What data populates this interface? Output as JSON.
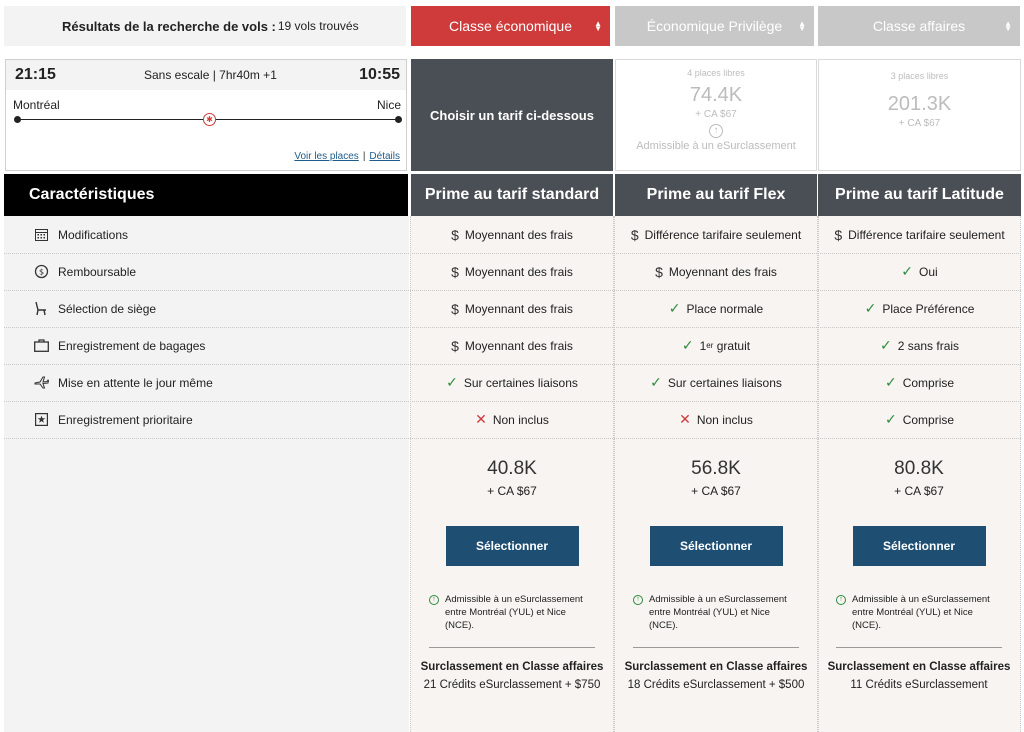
{
  "header": {
    "results_title": "Résultats de la recherche de vols :",
    "results_count": "19 vols trouvés",
    "tabs": [
      {
        "label": "Classe économique",
        "color": "#cf3a3a"
      },
      {
        "label": "Économique Privilège",
        "color": "#c8c8c8"
      },
      {
        "label": "Classe affaires",
        "color": "#c8c8c8"
      }
    ]
  },
  "flight": {
    "departure_time": "21:15",
    "arrival_time": "10:55",
    "duration": "Sans escale | 7hr40m +1",
    "origin": "Montréal",
    "destination": "Nice",
    "seats_link": "Voir les places",
    "details_link": "Détails",
    "link_separator": "|"
  },
  "choose_label": "Choisir un tarif ci-dessous",
  "cabin_prices": [
    {
      "seats": "4 places libres",
      "miles": "74.4K",
      "cash": "+ CA $67",
      "eligibility": "Admissible à un eSurclassement"
    },
    {
      "seats": "3 places libres",
      "miles": "201.3K",
      "cash": "+ CA $67"
    }
  ],
  "features_title": "Caractéristiques",
  "fare_columns": [
    {
      "name": "Prime au tarif standard"
    },
    {
      "name": "Prime au tarif Flex"
    },
    {
      "name": "Prime au tarif Latitude"
    }
  ],
  "features": [
    {
      "label": "Modifications",
      "icon": "calendar-icon",
      "cells": [
        {
          "mark": "$",
          "text": "Moyennant des frais"
        },
        {
          "mark": "$",
          "text": "Différence tarifaire seulement"
        },
        {
          "mark": "$",
          "text": "Différence tarifaire seulement"
        }
      ]
    },
    {
      "label": "Remboursable",
      "icon": "refund-icon",
      "cells": [
        {
          "mark": "$",
          "text": "Moyennant des frais"
        },
        {
          "mark": "$",
          "text": "Moyennant des frais"
        },
        {
          "mark": "✓",
          "text": "Oui"
        }
      ]
    },
    {
      "label": "Sélection de siège",
      "icon": "seat-icon",
      "cells": [
        {
          "mark": "$",
          "text": "Moyennant des frais"
        },
        {
          "mark": "✓",
          "text": "Place normale"
        },
        {
          "mark": "✓",
          "text": "Place Préférence"
        }
      ]
    },
    {
      "label": "Enregistrement de bagages",
      "icon": "baggage-icon",
      "cells": [
        {
          "mark": "$",
          "text": "Moyennant des frais"
        },
        {
          "mark": "✓",
          "text": "1",
          "sup": "er",
          "after": " gratuit"
        },
        {
          "mark": "✓",
          "text": "2 sans frais"
        }
      ]
    },
    {
      "label": "Mise en attente le jour même",
      "icon": "standby-plane-icon",
      "cells": [
        {
          "mark": "✓",
          "text": "Sur certaines liaisons"
        },
        {
          "mark": "✓",
          "text": "Sur certaines liaisons"
        },
        {
          "mark": "✓",
          "text": "Comprise"
        }
      ]
    },
    {
      "label": "Enregistrement prioritaire",
      "icon": "star-box-icon",
      "cells": [
        {
          "mark": "✕",
          "text": "Non inclus"
        },
        {
          "mark": "✕",
          "text": "Non inclus"
        },
        {
          "mark": "✓",
          "text": "Comprise"
        }
      ]
    }
  ],
  "fares": [
    {
      "miles": "40.8K",
      "cash": "+ CA $67",
      "button": "Sélectionner",
      "upgrade_text": "Admissible à un eSurclassement entre Montréal (YUL) et Nice (NCE).",
      "upgrade_title": "Surclassement en Classe affaires",
      "upgrade_credits": "21 Crédits eSurclassement + $750"
    },
    {
      "miles": "56.8K",
      "cash": "+ CA $67",
      "button": "Sélectionner",
      "upgrade_text": "Admissible à un eSurclassement entre Montréal (YUL) et Nice (NCE).",
      "upgrade_title": "Surclassement en Classe affaires",
      "upgrade_credits": "18 Crédits eSurclassement + $500"
    },
    {
      "miles": "80.8K",
      "cash": "+ CA $67",
      "button": "Sélectionner",
      "upgrade_text": "Admissible à un eSurclassement entre Montréal (YUL) et Nice (NCE).",
      "upgrade_title": "Surclassement en Classe affaires",
      "upgrade_credits": "11 Crédits eSurclassement"
    }
  ]
}
